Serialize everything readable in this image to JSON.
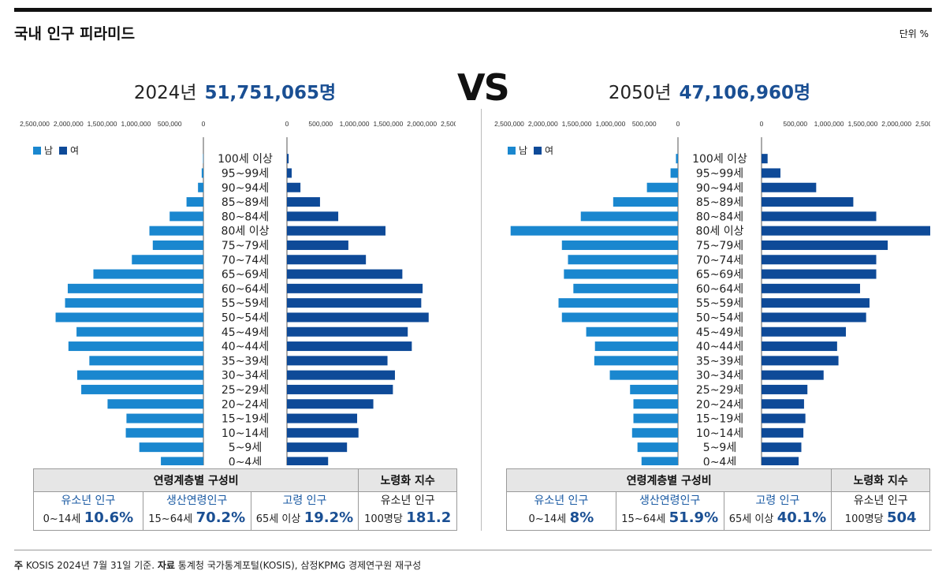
{
  "header": {
    "title": "국내 인구 피라미드",
    "unit": "단위 %"
  },
  "vs_label": "VS",
  "legend": {
    "male": "남",
    "female": "여"
  },
  "colors": {
    "male": "#1a87cf",
    "female": "#0e4a98",
    "stat_value": "#1a4f93",
    "stat_label": "#1a5aa3"
  },
  "axis_ticks_left": [
    "2,500,000",
    "2,000,000",
    "1,500,000",
    "1,000,000",
    "500,000",
    "0"
  ],
  "axis_ticks_right": [
    "0",
    "500,000",
    "1,000,000",
    "1,500,000",
    "2,000,000",
    "2,500,000"
  ],
  "chart_data": [
    {
      "type": "bar",
      "title": "2024년 51,751,065명",
      "year": "2024년",
      "population": "51,751,065명",
      "xlim": [
        0,
        2500000
      ],
      "categories": [
        "100세 이상",
        "95~99세",
        "90~94세",
        "85~89세",
        "80~84세",
        "80세 이상",
        "75~79세",
        "70~74세",
        "65~69세",
        "60~64세",
        "55~59세",
        "50~54세",
        "45~49세",
        "40~44세",
        "35~39세",
        "30~34세",
        "25~29세",
        "20~24세",
        "15~19세",
        "10~14세",
        "5~9세",
        "0~4세"
      ],
      "series": [
        {
          "name": "남",
          "values": [
            6000,
            25000,
            80000,
            250000,
            500000,
            800000,
            750000,
            1060000,
            1630000,
            2010000,
            2050000,
            2190000,
            1880000,
            2000000,
            1690000,
            1870000,
            1810000,
            1420000,
            1140000,
            1150000,
            950000,
            630000
          ]
        },
        {
          "name": "여",
          "values": [
            25000,
            70000,
            200000,
            490000,
            760000,
            1460000,
            910000,
            1170000,
            1710000,
            2010000,
            1990000,
            2100000,
            1790000,
            1850000,
            1490000,
            1600000,
            1570000,
            1280000,
            1040000,
            1060000,
            890000,
            610000
          ]
        }
      ],
      "stats": {
        "section_title": "연령계층별 구성비",
        "aging_title": "노령화 지수",
        "youth": {
          "label": "유소년 인구",
          "range": "0~14세",
          "value": "10.6%"
        },
        "working": {
          "label": "생산연령인구",
          "range": "15~64세",
          "value": "70.2%"
        },
        "elderly": {
          "label": "고령 인구",
          "range": "65세 이상",
          "value": "19.2%"
        },
        "aging": {
          "label": "유소년 인구",
          "range": "100명당",
          "value": "181.2"
        }
      }
    },
    {
      "type": "bar",
      "title": "2050년 47,106,960명",
      "year": "2050년",
      "population": "47,106,960명",
      "xlim": [
        0,
        2500000
      ],
      "categories": [
        "100세 이상",
        "95~99세",
        "90~94세",
        "85~89세",
        "80~84세",
        "80세 이상",
        "75~79세",
        "70~74세",
        "65~69세",
        "60~64세",
        "55~59세",
        "50~54세",
        "45~49세",
        "40~44세",
        "35~39세",
        "30~34세",
        "25~29세",
        "20~24세",
        "15~19세",
        "10~14세",
        "5~9세",
        "0~4세"
      ],
      "series": [
        {
          "name": "남",
          "values": [
            30000,
            110000,
            460000,
            960000,
            1440000,
            2480000,
            1720000,
            1630000,
            1690000,
            1550000,
            1770000,
            1720000,
            1360000,
            1230000,
            1240000,
            1010000,
            710000,
            660000,
            660000,
            680000,
            600000,
            540000
          ]
        },
        {
          "name": "여",
          "values": [
            90000,
            280000,
            810000,
            1360000,
            1700000,
            2570000,
            1870000,
            1700000,
            1700000,
            1460000,
            1600000,
            1550000,
            1250000,
            1120000,
            1140000,
            920000,
            680000,
            630000,
            650000,
            620000,
            590000,
            550000
          ]
        }
      ],
      "stats": {
        "section_title": "연령계층별 구성비",
        "aging_title": "노령화 지수",
        "youth": {
          "label": "유소년 인구",
          "range": "0~14세",
          "value": "8%"
        },
        "working": {
          "label": "생산연령인구",
          "range": "15~64세",
          "value": "51.9%"
        },
        "elderly": {
          "label": "고령 인구",
          "range": "65세 이상",
          "value": "40.1%"
        },
        "aging": {
          "label": "유소년 인구",
          "range": "100명당",
          "value": "504"
        }
      }
    }
  ],
  "footer": {
    "note_label": "주",
    "note": "KOSIS 2024년 7월 31일 기준.",
    "source_label": "자료",
    "source": "통계청 국가통계포털(KOSIS), 삼정KPMG 경제연구원 재구성"
  }
}
